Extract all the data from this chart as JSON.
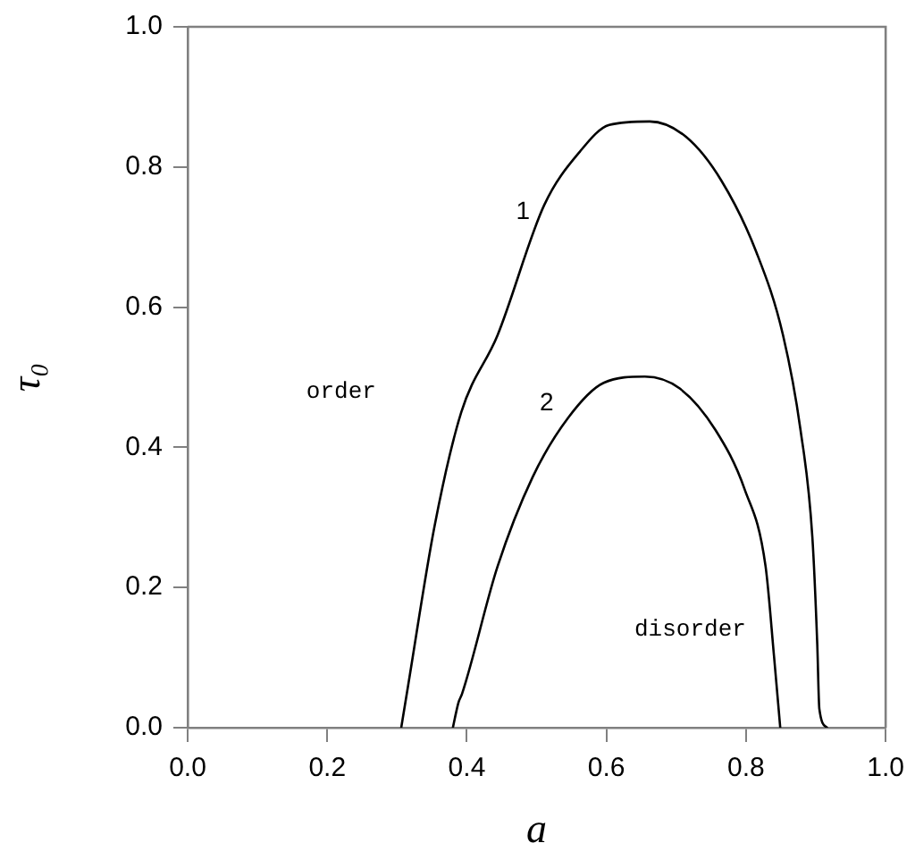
{
  "chart_data": {
    "type": "line",
    "xlabel": "a",
    "ylabel": "τ₀",
    "xlim": [
      0,
      1
    ],
    "ylim": [
      0,
      1
    ],
    "xticks": [
      {
        "value": 0,
        "label": "0.0"
      },
      {
        "value": 0.2,
        "label": "0.2"
      },
      {
        "value": 0.4,
        "label": "0.4"
      },
      {
        "value": 0.6,
        "label": "0.6"
      },
      {
        "value": 0.8,
        "label": "0.8"
      },
      {
        "value": 1,
        "label": "1.0"
      }
    ],
    "yticks": [
      {
        "value": 0,
        "label": "0.0"
      },
      {
        "value": 0.2,
        "label": "0.2"
      },
      {
        "value": 0.4,
        "label": "0.4"
      },
      {
        "value": 0.6,
        "label": "0.6"
      },
      {
        "value": 0.8,
        "label": "0.8"
      },
      {
        "value": 1,
        "label": "1.0"
      }
    ],
    "grid": false,
    "legend": false,
    "marker": "none",
    "line_style": "solid",
    "series": [
      {
        "name": "1",
        "color": "#000000",
        "x": [
          0.306,
          0.316,
          0.354,
          0.392,
          0.444,
          0.511,
          0.562,
          0.604,
          0.662,
          0.714,
          0.765,
          0.815,
          0.853,
          0.878,
          0.895,
          0.902,
          0.905,
          0.916
        ],
        "values": [
          0,
          0.061,
          0.289,
          0.45,
          0.56,
          0.746,
          0.822,
          0.86,
          0.865,
          0.843,
          0.78,
          0.678,
          0.56,
          0.425,
          0.272,
          0.12,
          0.027,
          0
        ]
      },
      {
        "name": "2",
        "color": "#000000",
        "x": [
          0.38,
          0.388,
          0.393,
          0.444,
          0.494,
          0.545,
          0.596,
          0.655,
          0.705,
          0.756,
          0.798,
          0.828,
          0.84,
          0.849
        ],
        "values": [
          0,
          0.036,
          0.048,
          0.23,
          0.357,
          0.442,
          0.492,
          0.501,
          0.484,
          0.425,
          0.34,
          0.23,
          0.103,
          0
        ]
      }
    ],
    "annotations": [
      "order",
      "disorder"
    ]
  }
}
